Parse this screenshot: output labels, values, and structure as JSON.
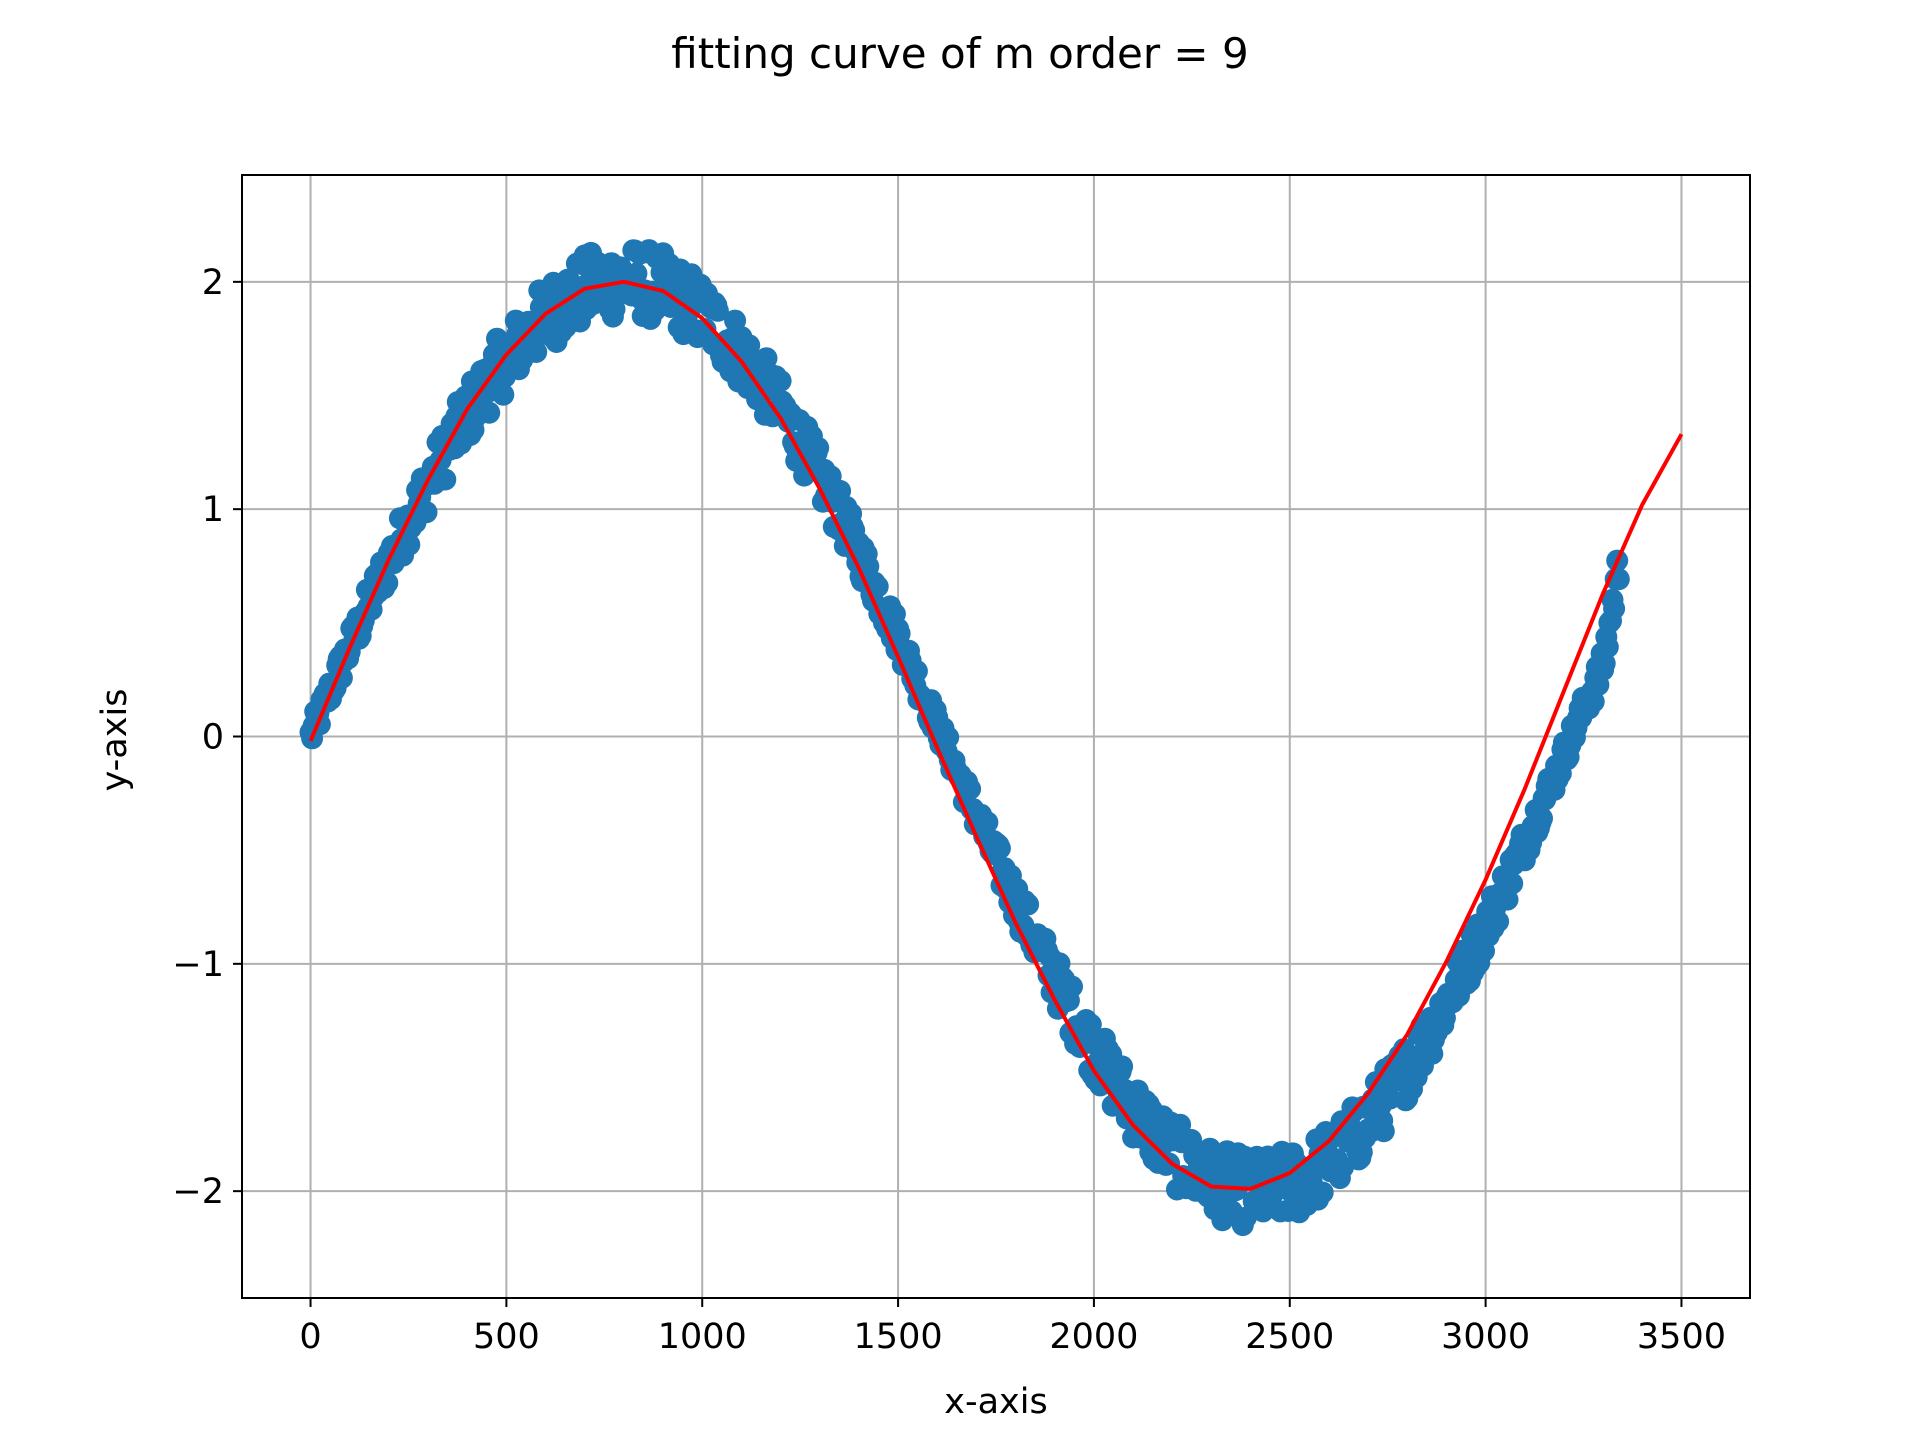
{
  "chart_data": {
    "type": "scatter",
    "title": "fitting curve of m order = 9",
    "xlabel": "x-axis",
    "ylabel": "y-axis",
    "xlim": [
      -175,
      3675
    ],
    "ylim": [
      -2.47,
      2.47
    ],
    "grid": true,
    "x_ticks": [
      0,
      500,
      1000,
      1500,
      2000,
      2500,
      3000,
      3500
    ],
    "y_ticks": [
      -2,
      -1,
      0,
      1,
      2
    ],
    "x_tick_labels": [
      "0",
      "500",
      "1000",
      "1500",
      "2000",
      "2500",
      "3000",
      "3500"
    ],
    "y_tick_labels": [
      "−2",
      "−1",
      "0",
      "1",
      "2"
    ],
    "series": [
      {
        "kind": "scatter",
        "color": "#1f77b4",
        "description_points": {
          "x": [
            0,
            60,
            120,
            180,
            240,
            300,
            360,
            420,
            480,
            540,
            600,
            660,
            720,
            780,
            840,
            900,
            960,
            1020,
            1080,
            1140,
            1200,
            1260,
            1320,
            1380,
            1440,
            1500,
            1560,
            1620,
            1680,
            1740,
            1800,
            1860,
            1920,
            1980,
            2040,
            2100,
            2160,
            2220,
            2280,
            2340,
            2400,
            2460,
            2520,
            2580,
            2640,
            2700,
            2760,
            2820,
            2880,
            2940,
            3000,
            3060,
            3120,
            3180,
            3240,
            3300,
            3340
          ],
          "y": [
            0.0,
            0.24,
            0.47,
            0.7,
            0.91,
            1.11,
            1.3,
            1.47,
            1.62,
            1.74,
            1.85,
            1.93,
            1.98,
            2.0,
            2.0,
            1.97,
            1.91,
            1.83,
            1.72,
            1.59,
            1.44,
            1.27,
            1.08,
            0.88,
            0.66,
            0.44,
            0.2,
            -0.03,
            -0.27,
            -0.5,
            -0.72,
            -0.93,
            -1.13,
            -1.32,
            -1.49,
            -1.63,
            -1.76,
            -1.86,
            -1.94,
            -1.98,
            -2.0,
            -1.99,
            -1.96,
            -1.89,
            -1.81,
            -1.69,
            -1.56,
            -1.41,
            -1.23,
            -1.04,
            -0.84,
            -0.62,
            -0.39,
            -0.16,
            0.08,
            0.31,
            0.75
          ]
        }
      },
      {
        "kind": "line",
        "color": "#ff0000",
        "x": [
          0,
          100,
          200,
          300,
          400,
          500,
          600,
          700,
          800,
          900,
          1000,
          1100,
          1200,
          1300,
          1400,
          1500,
          1600,
          1700,
          1800,
          1900,
          2000,
          2100,
          2200,
          2300,
          2400,
          2500,
          2600,
          2700,
          2800,
          2900,
          3000,
          3100,
          3200,
          3300,
          3400,
          3500
        ],
        "y": [
          -0.02,
          0.39,
          0.78,
          1.13,
          1.44,
          1.68,
          1.86,
          1.97,
          2.0,
          1.96,
          1.84,
          1.65,
          1.4,
          1.09,
          0.74,
          0.35,
          -0.05,
          -0.44,
          -0.82,
          -1.16,
          -1.47,
          -1.71,
          -1.88,
          -1.98,
          -1.99,
          -1.92,
          -1.78,
          -1.57,
          -1.31,
          -0.99,
          -0.63,
          -0.23,
          0.2,
          0.63,
          1.02,
          1.33
        ]
      }
    ]
  }
}
